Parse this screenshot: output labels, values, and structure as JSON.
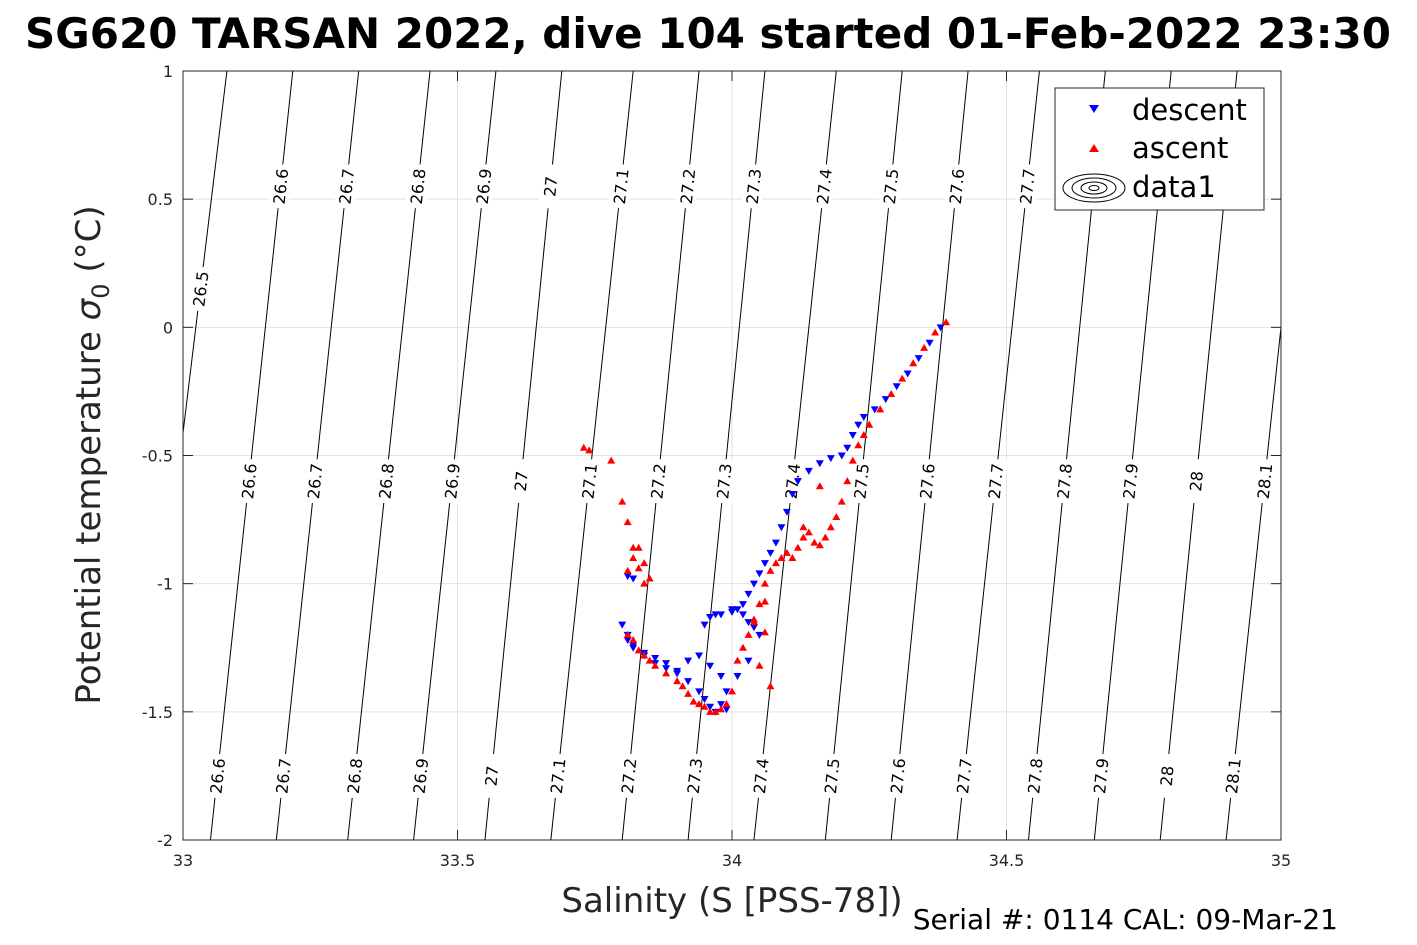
{
  "chart_data": {
    "type": "scatter",
    "title": "SG620 TARSAN 2022, dive 104 started 01-Feb-2022 23:30",
    "xlabel": "Salinity (S [PSS-78])",
    "ylabel_main": "Potential temperature ",
    "ylabel_sigma": "σ",
    "ylabel_sub": "0",
    "ylabel_unit": " (°C)",
    "footer": "Serial #: 0114  CAL: 09-Mar-21",
    "xlim": [
      33,
      35
    ],
    "ylim": [
      -2,
      1
    ],
    "x_ticks": [
      33,
      33.5,
      34,
      34.5,
      35
    ],
    "x_tick_labels": [
      "33",
      "33.5",
      "34",
      "34.5",
      "35"
    ],
    "y_ticks": [
      -2,
      -1.5,
      -1,
      -0.5,
      0,
      0.5,
      1
    ],
    "y_tick_labels": [
      "-2",
      "-1.5",
      "-1",
      "-0.5",
      "0",
      "0.5",
      "1"
    ],
    "grid": true,
    "legend_position": "top-right",
    "legend": [
      {
        "label": "descent",
        "color": "#0000ff",
        "marker": "triangle-down"
      },
      {
        "label": "ascent",
        "color": "#ff0000",
        "marker": "triangle-up"
      },
      {
        "label": "data1",
        "color": "#000000",
        "marker": "contour"
      }
    ],
    "isopycnals": {
      "levels": [
        26.5,
        26.6,
        26.7,
        26.8,
        26.9,
        27,
        27.1,
        27.2,
        27.3,
        27.4,
        27.5,
        27.6,
        27.7,
        27.8,
        27.9,
        28,
        28.1
      ],
      "labels": [
        "26.5",
        "26.6",
        "26.7",
        "26.8",
        "26.9",
        "27",
        "27.1",
        "27.2",
        "27.3",
        "27.4",
        "27.5",
        "27.6",
        "27.7",
        "27.8",
        "27.9",
        "28",
        "28.1"
      ],
      "s_at_top": [
        33.08,
        33.2,
        33.32,
        33.45,
        33.57,
        33.69,
        33.82,
        33.94,
        34.06,
        34.19,
        34.31,
        34.43,
        34.56,
        34.68,
        34.8,
        34.92,
        35.05
      ],
      "s_at_bottom": [
        32.91,
        33.05,
        33.17,
        33.3,
        33.42,
        33.55,
        33.67,
        33.8,
        33.92,
        34.04,
        34.17,
        34.29,
        34.41,
        34.54,
        34.66,
        34.78,
        34.9
      ],
      "label_rows": [
        {
          "theta": 0.55,
          "levels": [
            "26.6",
            "26.7",
            "26.8",
            "26.9",
            "27",
            "27.1",
            "27.2",
            "27.3",
            "27.4",
            "27.5",
            "27.6",
            "27.7"
          ]
        },
        {
          "theta": 0.15,
          "levels": [
            "26.5"
          ]
        },
        {
          "theta": -0.6,
          "levels": [
            "26.6",
            "26.7",
            "26.8",
            "26.9",
            "27",
            "27.1",
            "27.2",
            "27.3",
            "27.4",
            "27.5",
            "27.6",
            "27.7",
            "27.8",
            "27.9",
            "28",
            "28.1"
          ]
        },
        {
          "theta": -1.75,
          "levels": [
            "26.6",
            "26.7",
            "26.8",
            "26.9",
            "27",
            "27.1",
            "27.2",
            "27.3",
            "27.4",
            "27.5",
            "27.6",
            "27.7",
            "27.8",
            "27.9",
            "28",
            "28.1"
          ]
        }
      ]
    },
    "series": [
      {
        "name": "descent",
        "color": "#0000ff",
        "marker": "triangle-down",
        "x": [
          34.38,
          34.36,
          34.34,
          34.32,
          34.3,
          34.28,
          34.26,
          34.24,
          34.23,
          34.22,
          34.21,
          34.2,
          34.18,
          34.16,
          34.14,
          34.12,
          34.11,
          34.1,
          34.09,
          34.08,
          34.07,
          34.06,
          34.05,
          34.04,
          34.03,
          34.02,
          34.01,
          34.0,
          33.98,
          33.96,
          33.95,
          33.97,
          34.0,
          34.02,
          34.03,
          34.04,
          34.05,
          34.03,
          34.01,
          33.99,
          33.98,
          33.97,
          33.96,
          33.95,
          33.94,
          33.92,
          33.9,
          33.88,
          33.86,
          33.84,
          33.82,
          33.81,
          33.8,
          33.81,
          33.82,
          33.84,
          33.86,
          33.88,
          33.9,
          33.92,
          33.94,
          33.96,
          33.98,
          33.99,
          33.81,
          33.82
        ],
        "y": [
          0.0,
          -0.06,
          -0.12,
          -0.18,
          -0.23,
          -0.28,
          -0.32,
          -0.35,
          -0.38,
          -0.42,
          -0.47,
          -0.5,
          -0.51,
          -0.53,
          -0.56,
          -0.6,
          -0.65,
          -0.72,
          -0.78,
          -0.84,
          -0.88,
          -0.92,
          -0.96,
          -1.0,
          -1.04,
          -1.08,
          -1.1,
          -1.11,
          -1.12,
          -1.13,
          -1.16,
          -1.12,
          -1.1,
          -1.12,
          -1.15,
          -1.17,
          -1.2,
          -1.3,
          -1.36,
          -1.42,
          -1.47,
          -1.5,
          -1.48,
          -1.45,
          -1.42,
          -1.38,
          -1.34,
          -1.31,
          -1.29,
          -1.27,
          -1.25,
          -1.2,
          -1.16,
          -1.22,
          -1.24,
          -1.28,
          -1.31,
          -1.33,
          -1.35,
          -1.3,
          -1.28,
          -1.32,
          -1.36,
          -1.49,
          -0.97,
          -0.98
        ]
      },
      {
        "name": "ascent",
        "color": "#ff0000",
        "marker": "triangle-up",
        "x": [
          34.39,
          34.37,
          34.35,
          34.33,
          34.31,
          34.29,
          34.27,
          34.25,
          34.24,
          34.23,
          34.22,
          34.21,
          34.2,
          34.19,
          34.18,
          34.17,
          34.16,
          34.15,
          34.14,
          34.13,
          34.12,
          34.11,
          34.1,
          34.09,
          34.08,
          34.07,
          34.06,
          34.05,
          34.04,
          34.03,
          34.02,
          34.01,
          34.0,
          33.99,
          33.98,
          33.97,
          33.96,
          33.95,
          33.94,
          33.93,
          33.92,
          33.91,
          33.9,
          33.88,
          33.86,
          33.85,
          33.84,
          33.83,
          33.82,
          33.81,
          33.81,
          33.82,
          33.83,
          33.84,
          33.85,
          33.84,
          33.83,
          33.82,
          33.81,
          33.8,
          33.74,
          33.73,
          33.78,
          34.06,
          34.07,
          34.05,
          34.04,
          34.06,
          34.13,
          34.16
        ],
        "y": [
          0.02,
          -0.02,
          -0.08,
          -0.14,
          -0.2,
          -0.26,
          -0.32,
          -0.38,
          -0.42,
          -0.46,
          -0.52,
          -0.6,
          -0.68,
          -0.74,
          -0.78,
          -0.82,
          -0.85,
          -0.84,
          -0.8,
          -0.82,
          -0.86,
          -0.9,
          -0.88,
          -0.9,
          -0.92,
          -0.95,
          -1.0,
          -1.08,
          -1.15,
          -1.2,
          -1.25,
          -1.3,
          -1.42,
          -1.47,
          -1.49,
          -1.5,
          -1.5,
          -1.48,
          -1.47,
          -1.46,
          -1.43,
          -1.4,
          -1.38,
          -1.35,
          -1.32,
          -1.3,
          -1.28,
          -1.26,
          -1.22,
          -1.2,
          -0.95,
          -0.9,
          -0.86,
          -0.92,
          -0.98,
          -1.0,
          -0.94,
          -0.86,
          -0.76,
          -0.68,
          -0.48,
          -0.47,
          -0.52,
          -1.19,
          -1.4,
          -1.32,
          -1.14,
          -1.07,
          -0.78,
          -0.62
        ]
      }
    ]
  }
}
